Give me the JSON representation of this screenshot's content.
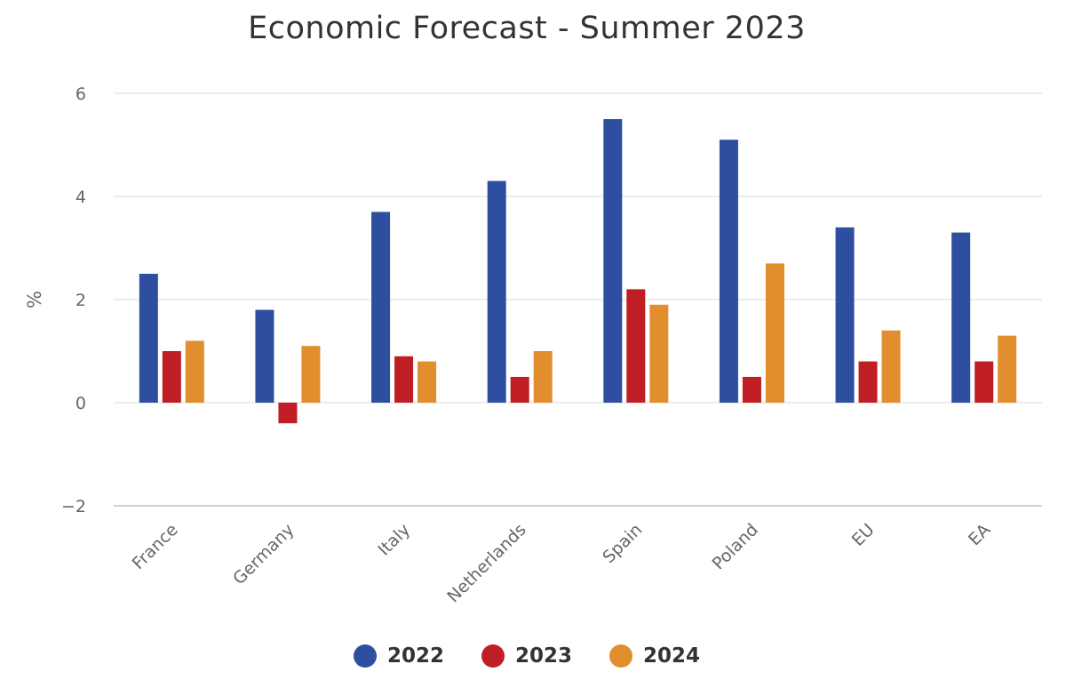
{
  "chart_data": {
    "type": "bar",
    "title": "Economic Forecast - Summer 2023",
    "xlabel": "",
    "ylabel": "%",
    "ylim": [
      -2,
      6
    ],
    "yticks": [
      -2,
      0,
      2,
      4,
      6
    ],
    "yticks_labels": [
      "−2",
      "0",
      "2",
      "4",
      "6"
    ],
    "grid": true,
    "legend_position": "bottom-center",
    "categories": [
      "France",
      "Germany",
      "Italy",
      "Netherlands",
      "Spain",
      "Poland",
      "EU",
      "EA"
    ],
    "series": [
      {
        "name": "2022",
        "color": "#2e4fa0",
        "values": [
          2.5,
          1.8,
          3.7,
          4.3,
          5.5,
          5.1,
          3.4,
          3.3
        ]
      },
      {
        "name": "2023",
        "color": "#bf1e24",
        "values": [
          1.0,
          -0.4,
          0.9,
          0.5,
          2.2,
          0.5,
          0.8,
          0.8
        ]
      },
      {
        "name": "2024",
        "color": "#e08e2e",
        "values": [
          1.2,
          1.1,
          0.8,
          1.0,
          1.9,
          2.7,
          1.4,
          1.3
        ]
      }
    ]
  }
}
